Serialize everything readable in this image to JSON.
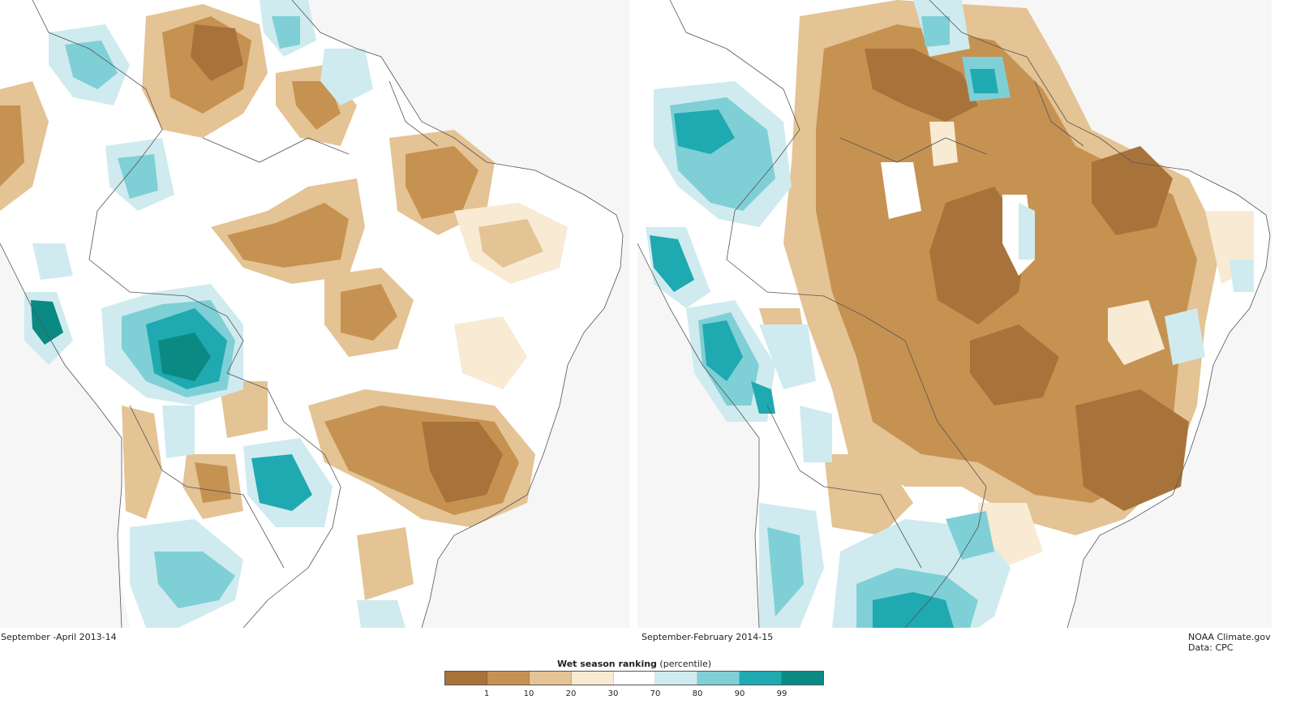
{
  "left_map": {
    "caption": "September -April 2013-14"
  },
  "right_map": {
    "caption": "September-February 2014-15"
  },
  "credit": {
    "line1": "NOAA Climate.gov",
    "line2": "Data: CPC"
  },
  "legend": {
    "title_bold": "Wet season ranking",
    "title_rest": " (percentile)",
    "colors": [
      "#a8733a",
      "#c69251",
      "#e4c394",
      "#f8ead3",
      "#ffffff",
      "#cfebef",
      "#7fcfd6",
      "#1fa9b0",
      "#0a8a83"
    ],
    "ticks": [
      "1",
      "10",
      "20",
      "30",
      "70",
      "80",
      "90",
      "99"
    ]
  },
  "palette": {
    "dry_strong": "#a8733a",
    "dry_mid": "#c69251",
    "dry_light": "#e4c394",
    "dry_faint": "#f8ead3",
    "neutral": "#ffffff",
    "wet_faint": "#cfebef",
    "wet_light": "#7fcfd6",
    "wet_mid": "#1fa9b0",
    "wet_strong": "#0a8a83",
    "ocean": "#f6f6f6",
    "border": "#555555"
  }
}
